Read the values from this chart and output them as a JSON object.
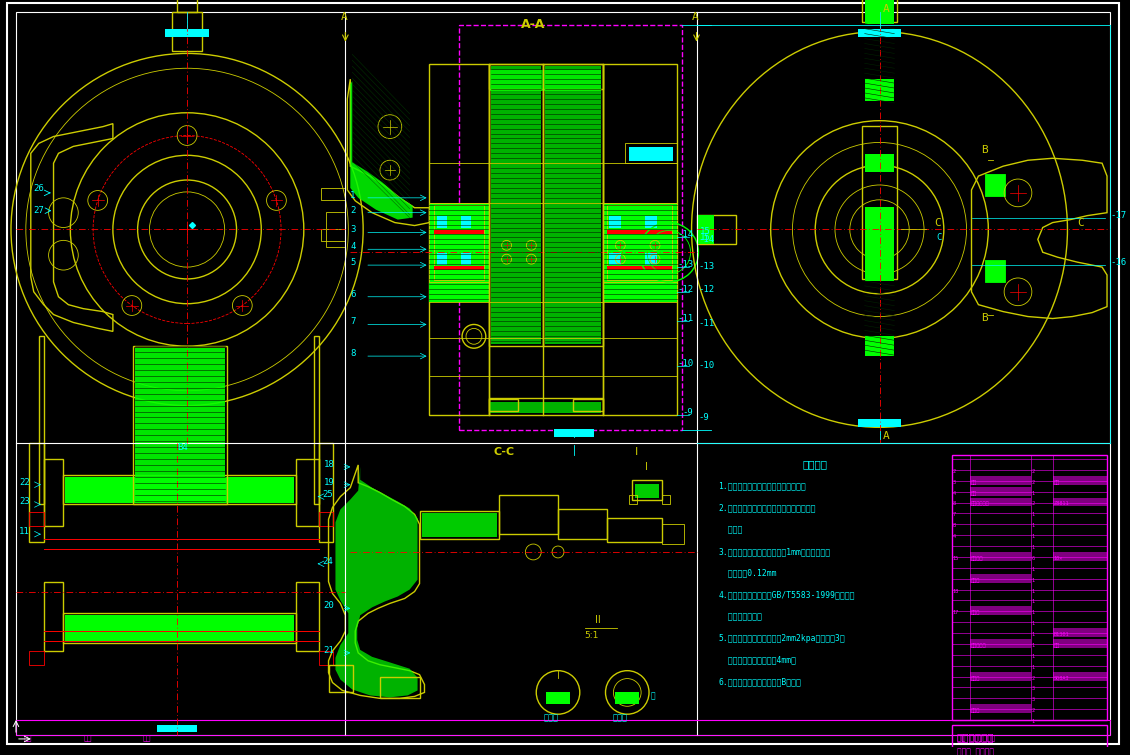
{
  "bg_color": "#000000",
  "drawing_color": "#cccc00",
  "cyan_color": "#00ffff",
  "magenta_color": "#ff00ff",
  "green_color": "#00ff00",
  "red_color": "#ff0000",
  "white_color": "#ffffff",
  "tech_requirements": [
    "技术要求",
    "1.装配油路中不能破坏零件各工步表面",
    "2.摩擦块制动盘上不允有有油脂，污垢及其",
    "  它异物",
    "3.在制动盘最大直径处点向内1mm，处摩擦面跳",
    "  动不大于0.12mm",
    "4.其余技术条件应符合GB/T5583-1999《铝车制",
    "  动器性能要求》",
    "5.在制动器装配内压力施至2mm2kpa时，保压3秒",
    "  钟，密封压力不能超过4mm气",
    "6.工作介质：流体动力油压B制动液"
  ],
  "figsize": [
    11.3,
    7.55
  ]
}
